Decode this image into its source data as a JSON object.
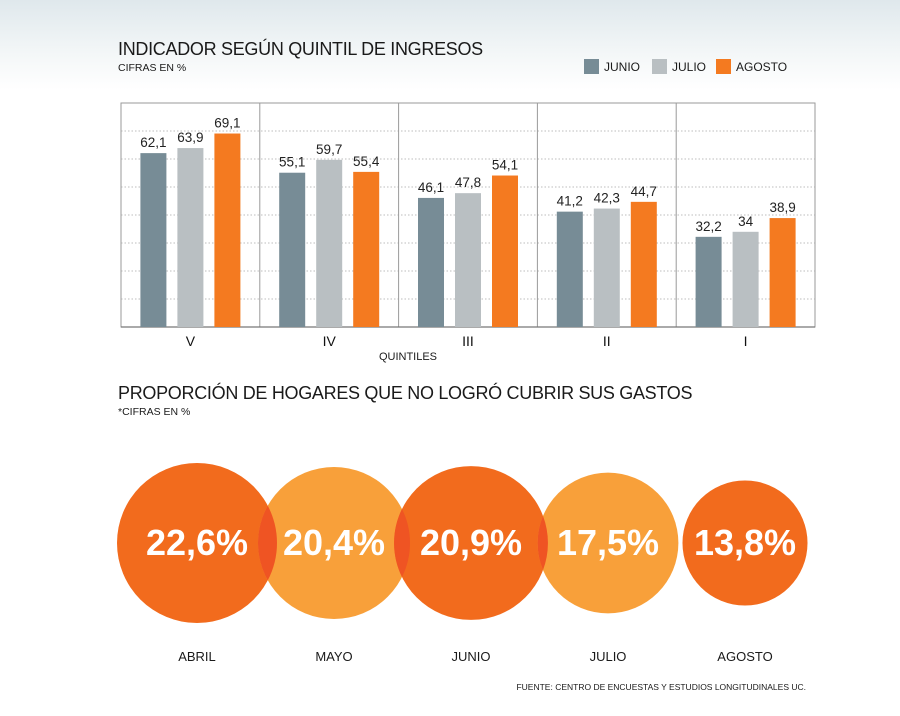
{
  "bar_chart": {
    "title": "INDICADOR SEGÚN QUINTIL DE INGRESOS",
    "subtitle": "CIFRAS EN %",
    "xlabel": "QUINTILES"
  },
  "bubble_chart": {
    "title": "PROPORCIÓN DE HOGARES QUE NO LOGRÓ CUBRIR SUS GASTOS",
    "subtitle": "*CIFRAS EN %"
  },
  "source": "FUENTE: CENTRO DE ENCUESTAS Y ESTUDIOS LONGITUDINALES UC.",
  "colors": {
    "junio": "#778c96",
    "julio": "#b9bfc2",
    "agosto": "#f47a20",
    "bubble_dark": "#f26b1d",
    "bubble_light": "#f8a03a",
    "overlap": "#ef5423"
  },
  "chart_data": [
    {
      "type": "bar",
      "title": "INDICADOR SEGÚN QUINTIL DE INGRESOS",
      "subtitle": "CIFRAS EN %",
      "xlabel": "QUINTILES",
      "ylabel": "",
      "categories": [
        "V",
        "IV",
        "III",
        "II",
        "I"
      ],
      "series": [
        {
          "name": "JUNIO",
          "color": "#778c96",
          "values": [
            62.1,
            55.1,
            46.1,
            41.2,
            32.2
          ],
          "labels": [
            "62,1",
            "55,1",
            "46,1",
            "41,2",
            "32,2"
          ]
        },
        {
          "name": "JULIO",
          "color": "#b9bfc2",
          "values": [
            63.9,
            59.7,
            47.8,
            42.3,
            34
          ],
          "labels": [
            "63,9",
            "59,7",
            "47,8",
            "42,3",
            "34"
          ]
        },
        {
          "name": "AGOSTO",
          "color": "#f47a20",
          "values": [
            69.1,
            55.4,
            54.1,
            44.7,
            38.9
          ],
          "labels": [
            "69,1",
            "55,4",
            "54,1",
            "44,7",
            "38,9"
          ]
        }
      ],
      "ylim": [
        0,
        80
      ],
      "grid": true,
      "legend": "top-right"
    },
    {
      "type": "bubble",
      "title": "PROPORCIÓN DE HOGARES QUE NO LOGRÓ CUBRIR SUS GASTOS",
      "subtitle": "*CIFRAS EN %",
      "categories": [
        "ABRIL",
        "MAYO",
        "JUNIO",
        "JULIO",
        "AGOSTO"
      ],
      "values": [
        22.6,
        20.4,
        20.9,
        17.5,
        13.8
      ],
      "labels": [
        "22,6%",
        "20,4%",
        "20,9%",
        "17,5%",
        "13,8%"
      ]
    }
  ]
}
